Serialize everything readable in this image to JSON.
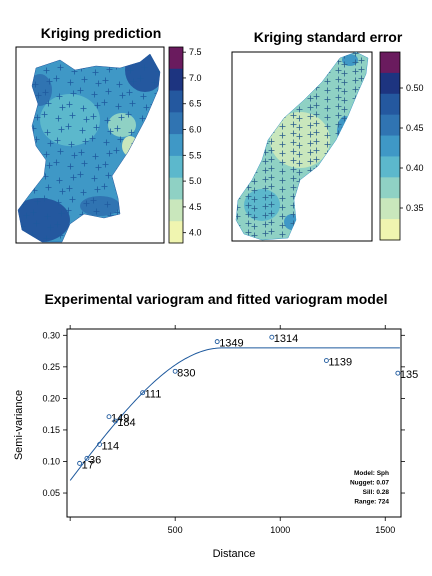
{
  "chart_data": [
    {
      "type": "heatmap",
      "title": "Kriging prediction",
      "legend_ticks": [
        "7.5",
        "7.0",
        "6.5",
        "6.0",
        "5.5",
        "5.0",
        "4.5",
        "4.0"
      ],
      "legend_colors": [
        "#6a1b5e",
        "#1d3480",
        "#24589f",
        "#3074b2",
        "#3f98c6",
        "#5cb8cc",
        "#8fd1c4",
        "#c9e7bc",
        "#f0f5b0"
      ],
      "colorbar_range": [
        3.8,
        7.6
      ]
    },
    {
      "type": "heatmap",
      "title": "Kriging standard error",
      "legend_ticks": [
        "0.50",
        "0.45",
        "0.40",
        "0.35"
      ],
      "legend_colors": [
        "#6a1b5e",
        "#1d3480",
        "#24589f",
        "#3074b2",
        "#3f98c6",
        "#5cb8cc",
        "#8fd1c4",
        "#c9e7bc",
        "#f0f5b0"
      ],
      "colorbar_range": [
        0.31,
        0.545
      ]
    },
    {
      "type": "scatter",
      "title": "Experimental variogram and fitted variogram model",
      "xlabel": "Distance",
      "ylabel": "Semi-variance",
      "xlim": [
        -15,
        1575
      ],
      "ylim": [
        0.012,
        0.31
      ],
      "xticks": [
        0,
        500,
        1000,
        1500
      ],
      "yticks": [
        0.05,
        0.1,
        0.15,
        0.2,
        0.25,
        0.3
      ],
      "points": [
        {
          "x": 45,
          "y": 0.097,
          "label": "17"
        },
        {
          "x": 80,
          "y": 0.105,
          "label": "36"
        },
        {
          "x": 140,
          "y": 0.127,
          "label": "114"
        },
        {
          "x": 185,
          "y": 0.171,
          "label": "149"
        },
        {
          "x": 215,
          "y": 0.164,
          "label": "184"
        },
        {
          "x": 345,
          "y": 0.209,
          "label": "111"
        },
        {
          "x": 500,
          "y": 0.243,
          "label": "830"
        },
        {
          "x": 700,
          "y": 0.29,
          "label": "1349"
        },
        {
          "x": 960,
          "y": 0.297,
          "label": "1314"
        },
        {
          "x": 1220,
          "y": 0.26,
          "label": "1139"
        },
        {
          "x": 1560,
          "y": 0.24,
          "label": "135"
        }
      ],
      "model": {
        "nugget": 0.07,
        "sill": 0.28,
        "range": 724
      },
      "model_text": [
        "Model: Sph",
        "Nugget: 0.07",
        "Sill: 0.28",
        "Range: 724"
      ]
    }
  ],
  "colors": {
    "model_line": "#1f5a9e",
    "point": "#1f5a9e"
  }
}
